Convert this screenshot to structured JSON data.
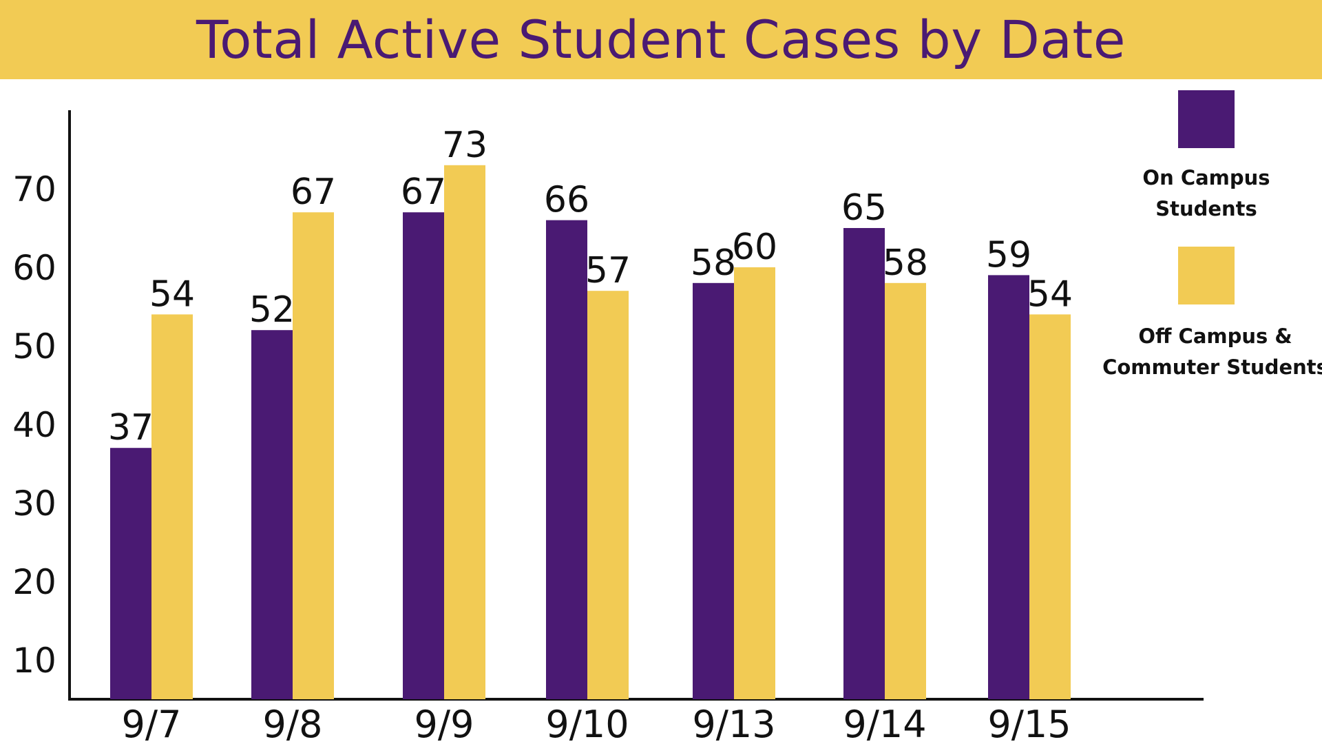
{
  "chart_data": {
    "type": "bar",
    "title": "Total Active Student Cases by Date",
    "categories": [
      "9/7",
      "9/8",
      "9/9",
      "9/10",
      "9/13",
      "9/14",
      "9/15"
    ],
    "series": [
      {
        "name": "On Campus Students",
        "legend_lines": [
          "On Campus",
          "Students"
        ],
        "color": "#4a1a73",
        "values": [
          37,
          52,
          67,
          66,
          58,
          65,
          59
        ]
      },
      {
        "name": "Off Campus & Commuter Students",
        "legend_lines": [
          "Off Campus &",
          "Commuter Students"
        ],
        "color": "#f2cb54",
        "values": [
          54,
          67,
          73,
          57,
          60,
          58,
          54
        ]
      }
    ],
    "y_ticks": [
      10,
      20,
      30,
      40,
      50,
      60,
      70
    ],
    "ylim": [
      5,
      81
    ],
    "xlabel": "",
    "ylabel": "",
    "grid": false,
    "legend_position": "right",
    "colors": {
      "title_band": "#f2cb54",
      "title_text": "#4a1a73",
      "axis": "#111111"
    }
  }
}
